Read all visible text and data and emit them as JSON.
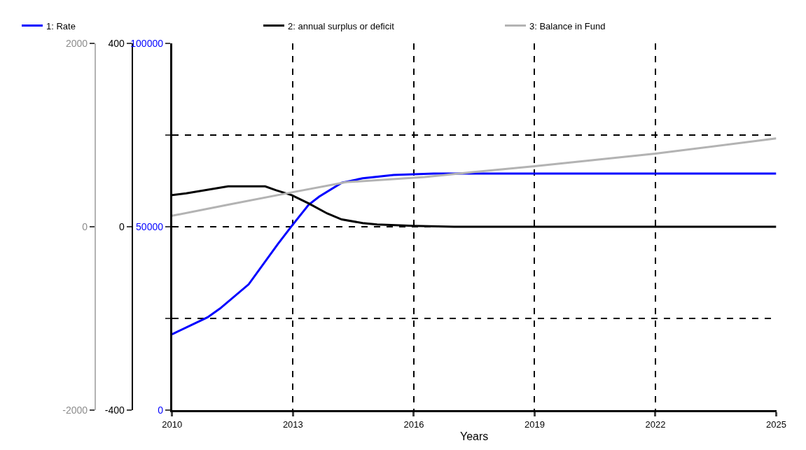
{
  "chart_data": {
    "type": "line",
    "xlabel": "Years",
    "xlim": [
      2010,
      2025
    ],
    "xticks": [
      2010,
      2013,
      2016,
      2019,
      2022,
      2025
    ],
    "ylim": [
      0,
      100000
    ],
    "yticks": [
      0,
      {
        "value": 25000,
        "label": null
      },
      50000,
      {
        "value": 75000,
        "label": null
      },
      100000
    ],
    "y2lim": [
      -400,
      400
    ],
    "y2ticks": [
      -400,
      0,
      400
    ],
    "y3lim": [
      -2000,
      2000
    ],
    "y3ticks": [
      -2000,
      0,
      2000
    ],
    "grid": true,
    "line_style": "solid",
    "marker": "none",
    "legend": "top",
    "series": [
      {
        "name": "1: Rate",
        "color": "#0000ff",
        "axis": "y",
        "x": [
          2010,
          2010.88,
          2011.19,
          2011.9,
          2012.62,
          2012.97,
          2013.39,
          2013.65,
          2014.21,
          2014.73,
          2015.5,
          2016.5,
          2025
        ],
        "values": [
          20700,
          25300,
          27700,
          34300,
          45200,
          50200,
          56000,
          58200,
          62000,
          63200,
          64100,
          64500,
          64500
        ]
      },
      {
        "name": "2: annual surplus or deficit",
        "color": "#000000",
        "axis": "y2",
        "x": [
          2010,
          2010.35,
          2011.39,
          2012.31,
          2012.57,
          2012.97,
          2013.39,
          2013.85,
          2014.21,
          2014.73,
          2015.09,
          2016,
          2017,
          2025
        ],
        "values": [
          69,
          73,
          88,
          88,
          80,
          69,
          51,
          29,
          16,
          8,
          5,
          2,
          0,
          0
        ]
      },
      {
        "name": "3: Balance in Fund",
        "color": "#b3b3b3",
        "axis": "y3",
        "x": [
          2010,
          2011.39,
          2012.97,
          2014.32,
          2016.27,
          2017.5,
          2019,
          2022,
          2025
        ],
        "values": [
          120,
          240,
          375,
          486,
          542,
          598,
          661,
          797,
          964
        ]
      }
    ]
  }
}
